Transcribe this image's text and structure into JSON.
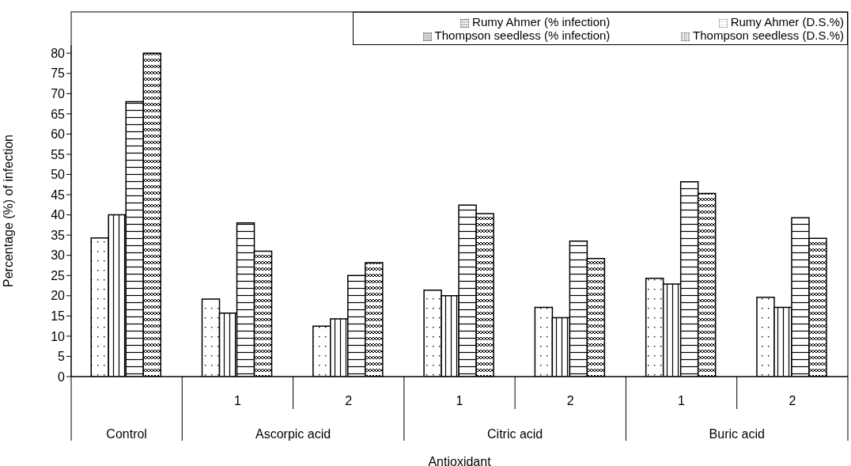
{
  "chart_data": {
    "type": "bar",
    "xlabel": "Antioxidant",
    "ylabel": "Percentage (%) of infection",
    "categories": [
      null,
      "1",
      "2",
      "1",
      "2",
      "1",
      "2"
    ],
    "annotations": [
      "Control",
      "Ascorpic acid",
      "Citric acid",
      "Buric acid"
    ],
    "series": [
      {
        "name": "Rumy Ahmer (D.S.%)",
        "color": "#000000",
        "values": [
          34.3,
          19.2,
          12.5,
          21.4,
          17.1,
          24.3,
          19.6
        ]
      },
      {
        "name": "Thompson seedless (D.S.%)",
        "color": "#000000",
        "values": [
          40,
          15.7,
          14.3,
          20,
          14.6,
          22.9,
          17.1
        ]
      },
      {
        "name": "Rumy Ahmer (% infection)",
        "color": "#000000",
        "values": [
          68,
          38,
          25,
          42.4,
          33.5,
          48.2,
          39.3
        ]
      },
      {
        "name": "Thompson seedless (% infection)",
        "color": "#000000",
        "values": [
          80,
          31,
          28.2,
          40.3,
          29.2,
          45.3,
          34.2
        ]
      }
    ],
    "ylim": [
      0,
      82
    ],
    "yticks": [
      0,
      5,
      10,
      15,
      20,
      25,
      30,
      35,
      40,
      45,
      50,
      55,
      60,
      65,
      70,
      75,
      80
    ],
    "grid": false,
    "legend": "top right"
  }
}
